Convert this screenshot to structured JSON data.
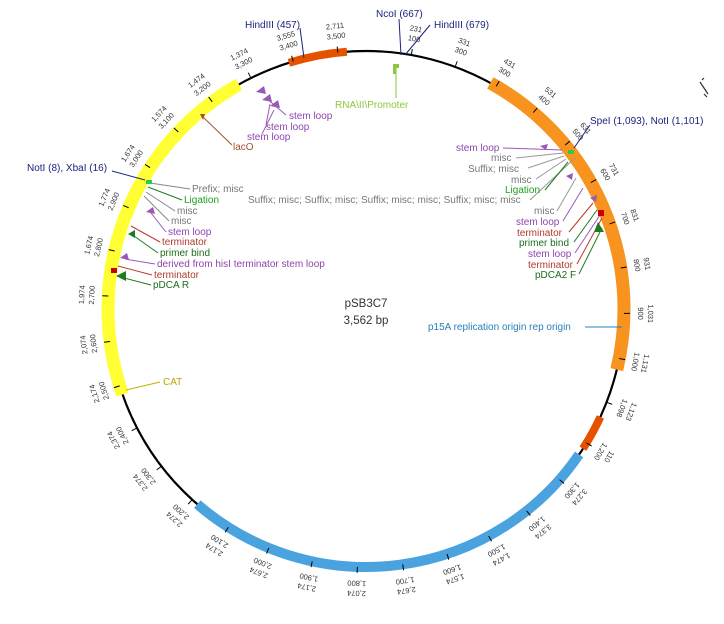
{
  "map": {
    "name": "pSB3C7",
    "length_label": "3,562 bp",
    "length_bp": 3562
  },
  "colors": {
    "backbone": "#000000",
    "orange": "#f7931e",
    "blue": "#4aa3df",
    "yellow": "#ffff33",
    "purple": "#8e44ad",
    "green": "#1e7b1e",
    "red_orange": "#e65100",
    "grey": "#777777",
    "site": "#1a237e",
    "lime": "#8dc63f",
    "brown": "#a0522d"
  },
  "sites": {
    "hindiii_457": "HindIII (457)",
    "ncoi_667": "NcoI (667)",
    "hindiii_679": "HindIII (679)",
    "spei_noti": "SpeI (1,093), NotI (1,101)",
    "noti_xbai": "NotI (8), XbaI (16)"
  },
  "features": {
    "promoter": "RNA\\II\\Promoter",
    "stem_loop_a": "stem loop",
    "stem_loop_b": "stem loop",
    "stem_loop_c": "stem loop",
    "laco": "lacO",
    "p15a": "p15A replication origin rep origin",
    "cat": "CAT",
    "prefix_misc": "Prefix; misc",
    "ligation_l": "Ligation",
    "misc_l1": "misc",
    "misc_l2": "misc",
    "stem_loop_l": "stem loop",
    "terminator_l1": "terminator",
    "primer_bind_l": "primer bind",
    "derived_l": "derived from hisI terminator stem loop",
    "terminator_l2": "terminator",
    "pdca_r": "pDCA R",
    "suffix_long": "Suffix; misc; Suffix; misc; Suffix; misc; misc; Suffix; misc; misc",
    "stem_loop_r1": "stem loop",
    "misc_r1": "misc",
    "suffix_misc_r": "Suffix; misc",
    "misc_r2": "misc",
    "ligation_r": "Ligation",
    "misc_r3": "misc",
    "stem_loop_r2": "stem loop",
    "terminator_r1": "terminator",
    "primer_bind_r": "primer bind",
    "stem_loop_r3": "stem loop",
    "terminator_r2": "terminator",
    "pdca2_f": "pDCA2 F"
  },
  "ticks": {
    "t100": "100",
    "t100b": "231",
    "t200": "300",
    "t200b": "331",
    "t300": "300",
    "t300b": "431",
    "t400": "400",
    "t400b": "531",
    "t500": "500",
    "t500b": "631",
    "t600": "600",
    "t600b": "731",
    "t700": "700",
    "t700b": "831",
    "t800": "800",
    "t800b": "931",
    "t900": "900",
    "t900b": "1,031",
    "t1000": "1,000",
    "t1000b": "1,131",
    "t1100": "1,098",
    "t1100b": "1,123",
    "t1200": "1,200",
    "t1200b": "110",
    "t1300": "1,300",
    "t1300b": "3,274",
    "t1400": "1,400",
    "t1400b": "3,374",
    "t1500": "1,500",
    "t1500b": "1,474",
    "t1600": "1,600",
    "t1600b": "1,574",
    "t1700": "1,700",
    "t1700b": "2,674",
    "t1800": "1,800",
    "t1800b": "2,074",
    "t1900": "1,900",
    "t1900b": "2,174",
    "t2000": "2,000",
    "t2000b": "2,674",
    "t2100": "2,100",
    "t2100b": "2,174",
    "t2200": "2,200",
    "t2200b": "2,274",
    "t2300": "2,300",
    "t2300b": "2,374",
    "t2400": "2,400",
    "t2400b": "2,374",
    "t2500": "2,500",
    "t2500b": "2,174",
    "t2600": "2,600",
    "t2600b": "2,074",
    "t2700": "2,700",
    "t2700b": "1,974",
    "t2800": "2,800",
    "t2800b": "1,674",
    "t2900": "2,900",
    "t2900b": "1,774",
    "t3000": "3,000",
    "t3000b": "1,674",
    "t3100": "3,100",
    "t3100b": "1,574",
    "t3200": "3,200",
    "t3200b": "1,474",
    "t3300": "3,300",
    "t3300b": "1,374",
    "t3400": "3,400",
    "t3400b": "3,555",
    "t3500": "3,500",
    "t3500b": "2,711"
  }
}
